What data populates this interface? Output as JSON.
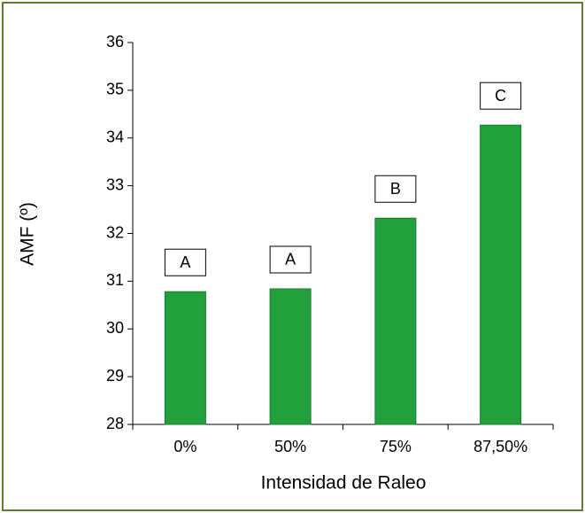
{
  "chart_data": {
    "type": "bar",
    "categories": [
      "0%",
      "50%",
      "75%",
      "87,50%"
    ],
    "values": [
      30.78,
      30.84,
      32.32,
      34.27
    ],
    "annotations": [
      "A",
      "A",
      "B",
      "C"
    ],
    "color": "#22a03c",
    "xlabel": "Intensidad de Raleo",
    "ylabel": "AMF (º)",
    "ylim": [
      28,
      36
    ],
    "yticks": [
      28,
      29,
      30,
      31,
      32,
      33,
      34,
      35,
      36
    ]
  }
}
